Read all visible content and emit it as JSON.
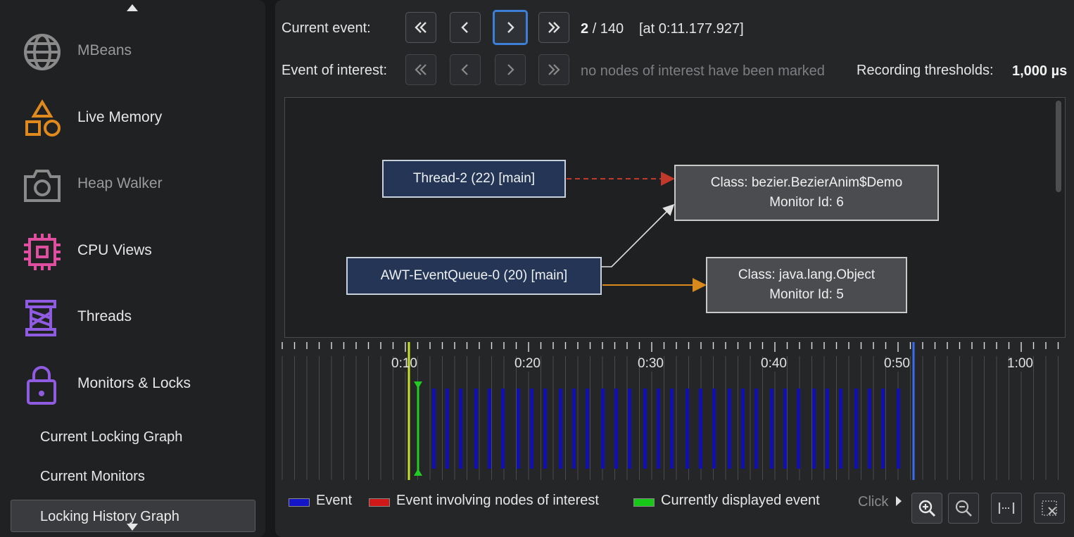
{
  "sidebar": {
    "items": [
      {
        "label": "MBeans",
        "icon": "globe-icon",
        "color": "#8a8a8a"
      },
      {
        "label": "Live Memory",
        "icon": "shapes-icon",
        "color": "#e08a1e"
      },
      {
        "label": "Heap Walker",
        "icon": "camera-icon",
        "color": "#8a8a8a"
      },
      {
        "label": "CPU Views",
        "icon": "chip-icon",
        "color": "#e04ea0"
      },
      {
        "label": "Threads",
        "icon": "spool-icon",
        "color": "#8f5be0"
      },
      {
        "label": "Monitors & Locks",
        "icon": "lock-icon",
        "color": "#8f5be0"
      }
    ],
    "sub_items": [
      {
        "label": "Current Locking Graph"
      },
      {
        "label": "Current Monitors"
      },
      {
        "label": "Locking History Graph"
      }
    ]
  },
  "navigation": {
    "current_event_label": "Current event:",
    "current_index": "2",
    "total": "/ 140",
    "timestamp": "[at 0:11.177.927]",
    "event_of_interest_label": "Event of interest:",
    "no_interest_text": "no nodes of interest have been marked",
    "thresholds_label": "Recording thresholds:",
    "thresholds_value": "1,000 µs"
  },
  "graph": {
    "nodes": [
      {
        "id": "t2",
        "text": "Thread-2 (22) [main]"
      },
      {
        "id": "awt",
        "text": "AWT-EventQueue-0 (20) [main]"
      },
      {
        "id": "c1",
        "line1": "Class: bezier.BezierAnim$Demo",
        "line2": "Monitor Id: 6"
      },
      {
        "id": "c2",
        "line1": "Class: java.lang.Object",
        "line2": "Monitor Id: 5"
      }
    ],
    "edge_colors": {
      "waiting": "#c0392b",
      "owns": "#e0e0e0",
      "other": "#d8891c"
    }
  },
  "timeline": {
    "tick_labels": [
      "0:10",
      "0:20",
      "0:30",
      "0:40",
      "0:50",
      "1:00"
    ],
    "event_color": "#1010b0",
    "current_color": "#22cc22",
    "marker_color": "#c8e02a",
    "end_marker_color": "#3a6cf0"
  },
  "legend": [
    {
      "label": "Event",
      "color": "#1414c8"
    },
    {
      "label": "Event involving nodes of interest",
      "color": "#d01818"
    },
    {
      "label": "Currently displayed event",
      "color": "#18c818"
    }
  ],
  "toolbar": {
    "click_hint": "Click",
    "tools": [
      {
        "icon": "zoom-in-icon"
      },
      {
        "icon": "zoom-out-icon"
      },
      {
        "icon": "fit-width-icon"
      },
      {
        "icon": "reset-selection-icon"
      }
    ]
  }
}
